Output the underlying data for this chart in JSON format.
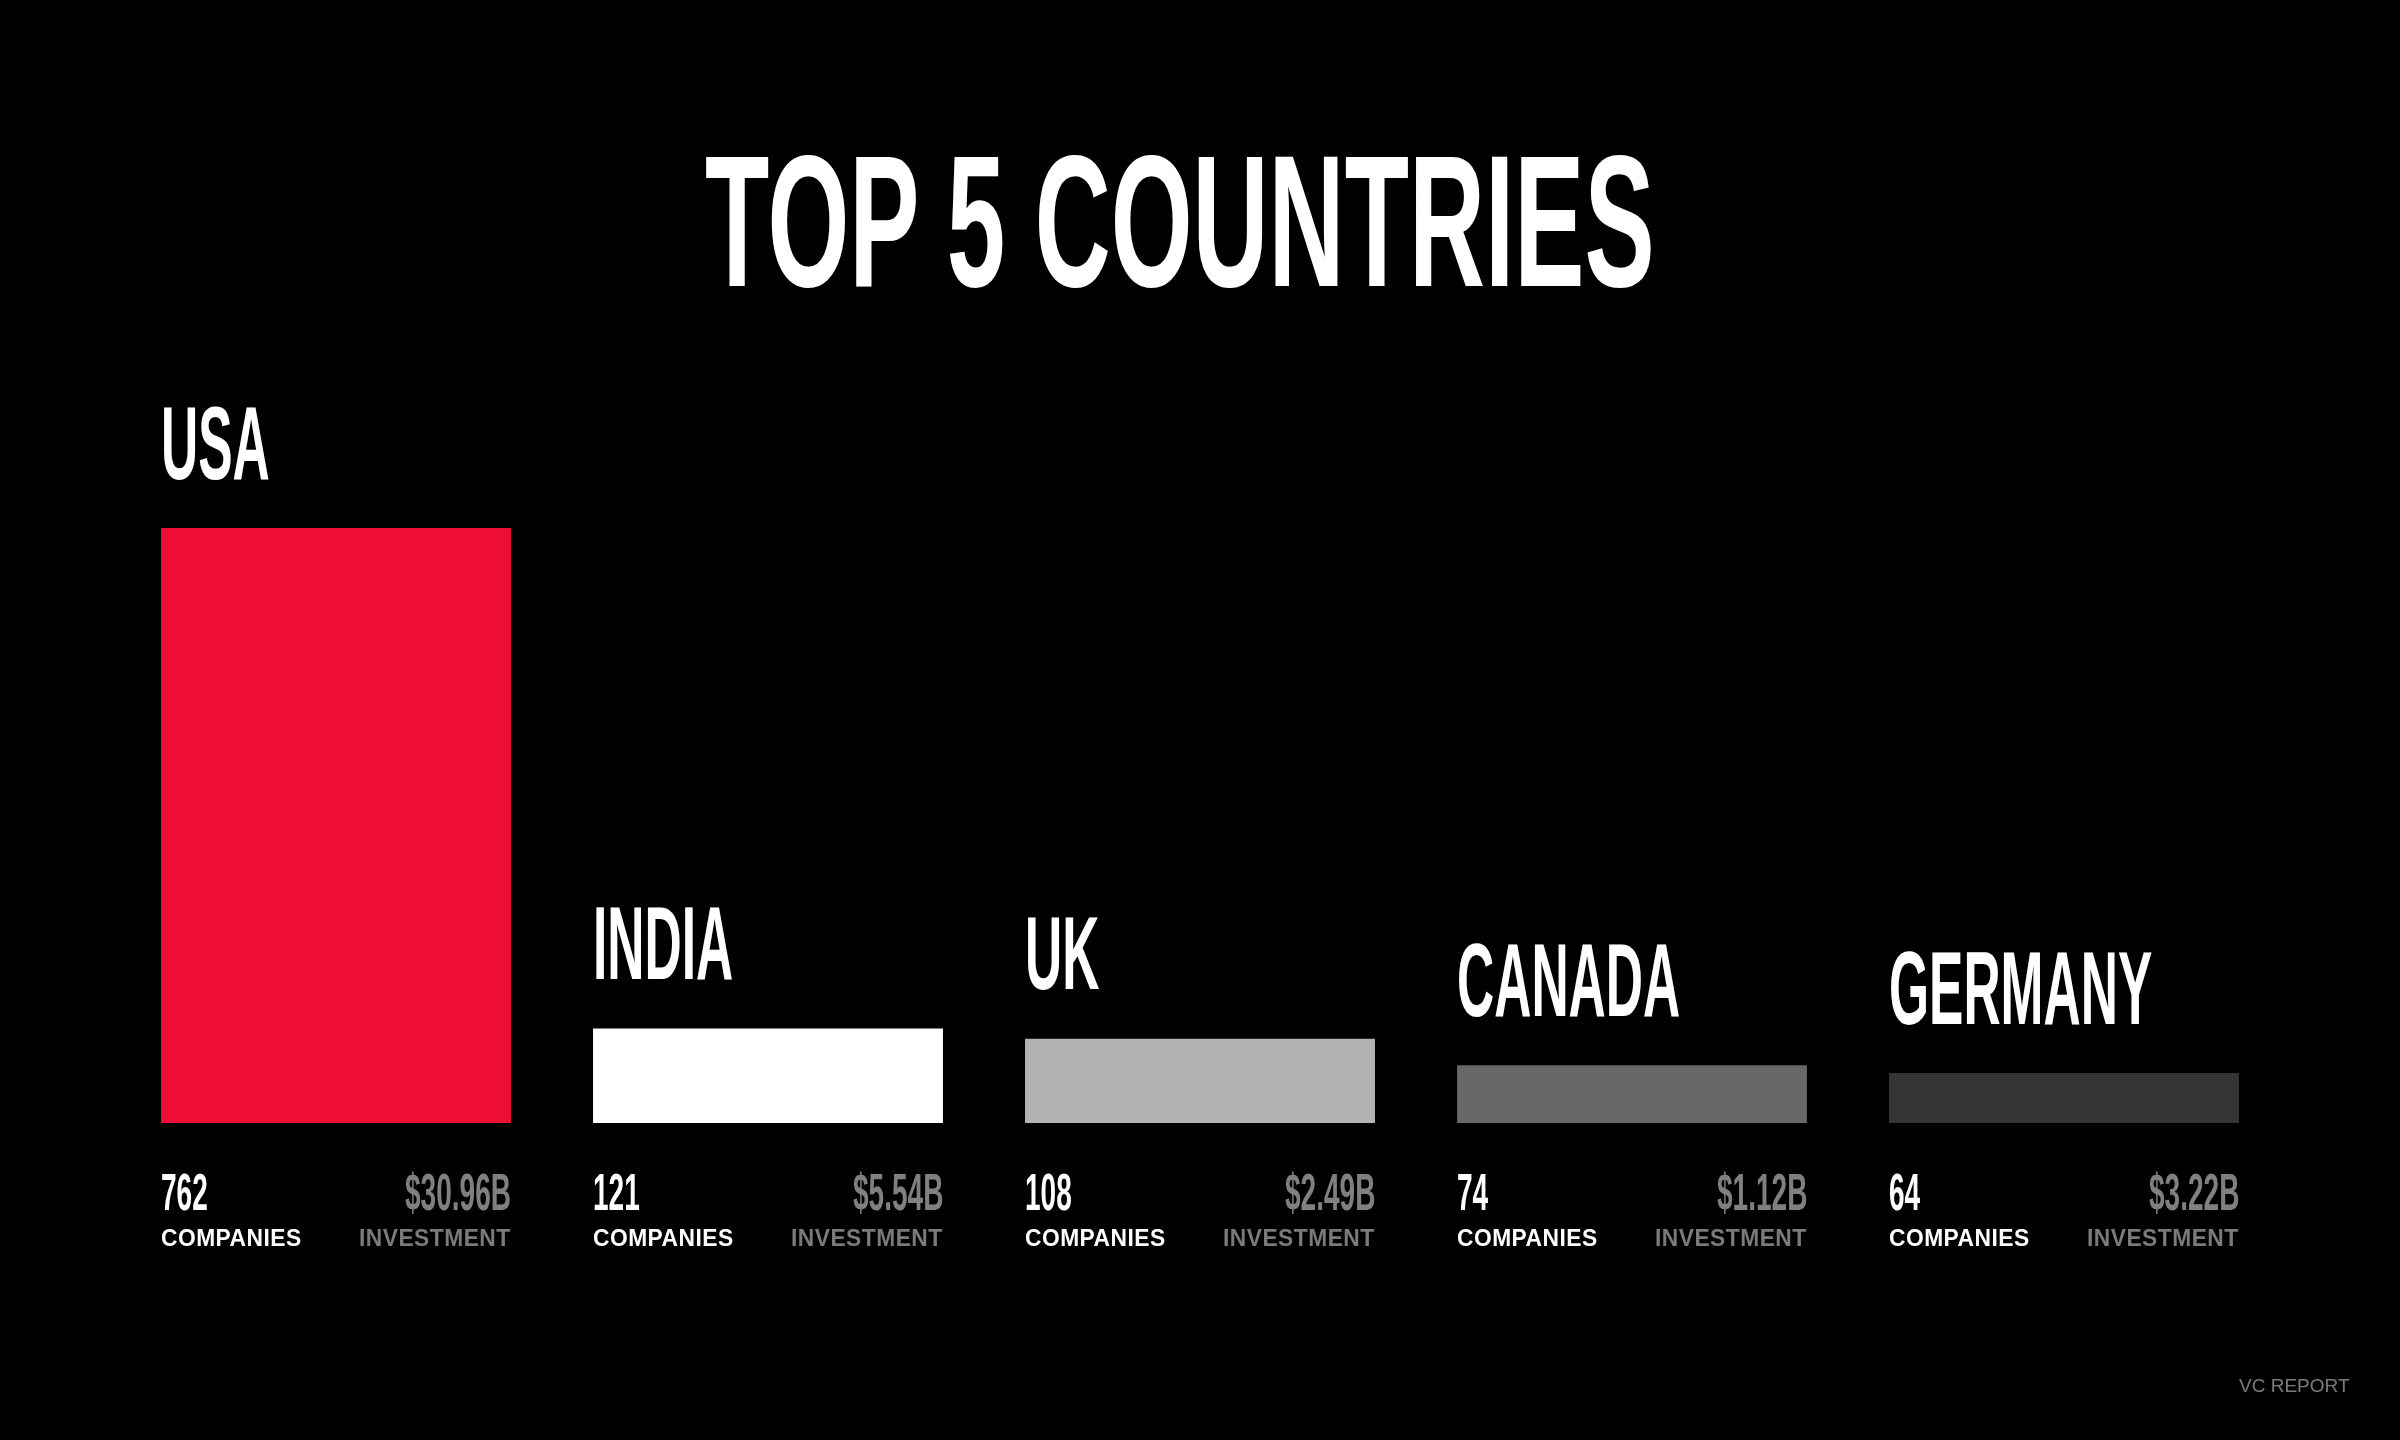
{
  "chart_data": {
    "type": "bar",
    "title": "TOP 5 COUNTRIES",
    "categories": [
      "USA",
      "INDIA",
      "UK",
      "CANADA",
      "GERMANY"
    ],
    "series": [
      {
        "name": "COMPANIES",
        "colors": [
          "#ee0e33",
          "#ffffff",
          "#b3b3b3",
          "#686868",
          "#353535"
        ],
        "values": [
          762,
          121,
          108,
          74,
          64
        ]
      }
    ],
    "data_labels": true,
    "annotations": [
      "$30.96B\nINVESTMENT",
      "$5.54B\nINVESTMENT",
      "$2.49B\nINVESTMENT",
      "$1.12B\nINVESTMENT",
      "$3.22B\nINVESTMENT",
      "VC REPORT"
    ]
  }
}
